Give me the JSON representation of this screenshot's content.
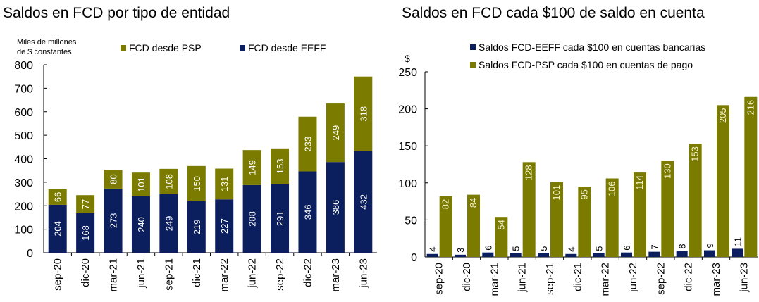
{
  "colors": {
    "eeff": "#0b1f5e",
    "psp": "#7b7b00",
    "axis": "#000000"
  },
  "chart_data": [
    {
      "type": "bar",
      "stacked": true,
      "title": "Saldos en FCD por tipo de entidad",
      "ylabel": "Miles de millones de $ constantes",
      "ylabel_lines": [
        "Miles de millones",
        "de $ constantes"
      ],
      "ylim": [
        0,
        800
      ],
      "yticks": [
        0,
        100,
        200,
        300,
        400,
        500,
        600,
        700,
        800
      ],
      "legend_position": "top",
      "grid": false,
      "categories": [
        "sep-20",
        "dic-20",
        "mar-21",
        "jun-21",
        "sep-21",
        "dic-21",
        "mar-22",
        "jun-22",
        "sep-22",
        "dic-22",
        "mar-23",
        "jun-23"
      ],
      "series": [
        {
          "name": "FCD desde EEFF",
          "values": [
            204,
            168,
            273,
            240,
            249,
            219,
            227,
            288,
            291,
            346,
            386,
            432
          ]
        },
        {
          "name": "FCD desde PSP",
          "values": [
            66,
            77,
            80,
            101,
            108,
            150,
            131,
            149,
            153,
            233,
            249,
            318
          ]
        }
      ]
    },
    {
      "type": "bar",
      "stacked": false,
      "title": "Saldos en FCD cada $100 de saldo en cuenta",
      "ylabel": "$",
      "ylim": [
        0,
        250
      ],
      "yticks": [
        0,
        50,
        100,
        150,
        200,
        250
      ],
      "legend_position": "top",
      "grid": false,
      "categories": [
        "sep-20",
        "dic-20",
        "mar-21",
        "jun-21",
        "sep-21",
        "dic-21",
        "mar-22",
        "jun-22",
        "sep-22",
        "dic-22",
        "mar-23",
        "jun-23"
      ],
      "series": [
        {
          "name": "Saldos FCD-EEFF cada $100 en cuentas bancarias",
          "values": [
            4,
            3,
            6,
            5,
            5,
            4,
            5,
            6,
            7,
            8,
            9,
            11
          ]
        },
        {
          "name": "Saldos FCD-PSP cada $100 en cuentas de pago",
          "values": [
            82,
            84,
            54,
            128,
            101,
            95,
            106,
            114,
            130,
            153,
            205,
            216
          ]
        }
      ]
    }
  ]
}
